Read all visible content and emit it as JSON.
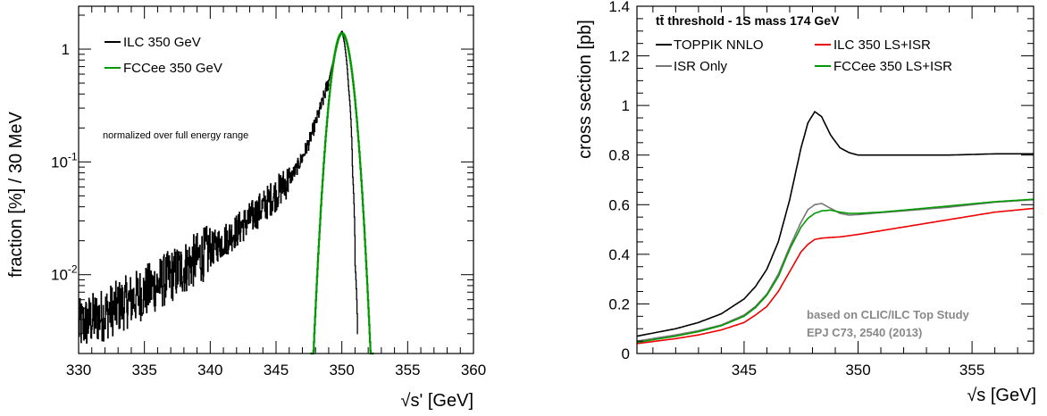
{
  "chart_data": [
    {
      "type": "line",
      "xlabel": "√s' [GeV]",
      "ylabel": "fraction [%] / 30 MeV",
      "xlim": [
        330,
        360
      ],
      "ylim": [
        0.002,
        2.4
      ],
      "yscale": "log",
      "grid": false,
      "legend_position": "top-left",
      "xticks": [
        "330",
        "335",
        "340",
        "345",
        "350",
        "355",
        "360"
      ],
      "yticks": [
        {
          "value": 1,
          "label": "1"
        },
        {
          "value": 0.1,
          "label": "10",
          "exp": "-1"
        },
        {
          "value": 0.01,
          "label": "10",
          "exp": "-2"
        }
      ],
      "annotation": "normalized over full energy range",
      "series": [
        {
          "name": "ILC 350 GeV",
          "color": "#000000",
          "style": "histogram-noisy",
          "x": [
            330,
            331,
            332,
            333,
            334,
            335,
            336,
            337,
            338,
            339,
            340,
            341,
            342,
            343,
            344,
            345,
            346,
            346.5,
            347,
            347.5,
            348,
            348.5,
            349,
            349.3,
            349.6,
            349.8,
            350,
            350.2,
            350.5,
            350.8,
            351,
            351.2
          ],
          "y": [
            0.0035,
            0.004,
            0.0045,
            0.0052,
            0.006,
            0.007,
            0.0082,
            0.0097,
            0.0115,
            0.0138,
            0.0165,
            0.02,
            0.0245,
            0.031,
            0.04,
            0.052,
            0.07,
            0.085,
            0.11,
            0.15,
            0.22,
            0.33,
            0.52,
            0.75,
            1.05,
            1.3,
            1.45,
            1.1,
            0.45,
            0.08,
            0.012,
            0.002
          ]
        },
        {
          "name": "FCCee 350 GeV",
          "color": "#009900",
          "style": "gaussian",
          "mean": 350.0,
          "sigma": 0.6,
          "peak": 1.38,
          "range": [
            347.6,
            352.4
          ]
        }
      ]
    },
    {
      "type": "line",
      "title": "tt̄ threshold - 1S mass 174 GeV",
      "xlabel": "√s [GeV]",
      "ylabel": "cross section [pb]",
      "xlim": [
        340.3,
        357.7
      ],
      "ylim": [
        0,
        1.4
      ],
      "grid": false,
      "legend_position": "top",
      "xticks": [
        "345",
        "350",
        "355"
      ],
      "yticks": [
        "0",
        "0.2",
        "0.4",
        "0.6",
        "0.8",
        "1",
        "1.2",
        "1.4"
      ],
      "annotations": [
        "based on CLIC/ILC Top Study",
        "EPJ C73, 2540 (2013)"
      ],
      "series": [
        {
          "name": "TOPPIK NNLO",
          "color": "#000000",
          "x": [
            340.3,
            342,
            343,
            344,
            345,
            345.5,
            346,
            346.5,
            347,
            347.5,
            347.8,
            348.1,
            348.4,
            348.8,
            349.2,
            349.6,
            350,
            350.5,
            351,
            352,
            354,
            356,
            357.7
          ],
          "y": [
            0.07,
            0.1,
            0.125,
            0.16,
            0.22,
            0.27,
            0.34,
            0.45,
            0.62,
            0.83,
            0.93,
            0.975,
            0.955,
            0.88,
            0.83,
            0.81,
            0.8,
            0.8,
            0.8,
            0.8,
            0.8,
            0.805,
            0.805
          ]
        },
        {
          "name": "ISR Only",
          "color": "#777777",
          "x": [
            340.3,
            342,
            343,
            344,
            345,
            345.5,
            346,
            346.5,
            347,
            347.5,
            347.8,
            348.1,
            348.4,
            348.8,
            349.2,
            349.6,
            350,
            351,
            352,
            354,
            356,
            357.7
          ],
          "y": [
            0.05,
            0.075,
            0.092,
            0.115,
            0.155,
            0.19,
            0.24,
            0.32,
            0.43,
            0.53,
            0.58,
            0.6,
            0.605,
            0.585,
            0.565,
            0.558,
            0.56,
            0.568,
            0.575,
            0.59,
            0.61,
            0.62
          ]
        },
        {
          "name": "ILC 350 LS+ISR",
          "color": "#ee0000",
          "x": [
            340.3,
            342,
            343,
            344,
            345,
            345.5,
            346,
            346.5,
            347,
            347.5,
            347.8,
            348.1,
            348.4,
            348.8,
            349.2,
            349.6,
            350,
            351,
            352,
            354,
            356,
            357.7
          ],
          "y": [
            0.04,
            0.06,
            0.075,
            0.095,
            0.125,
            0.155,
            0.19,
            0.25,
            0.33,
            0.41,
            0.44,
            0.46,
            0.465,
            0.468,
            0.47,
            0.475,
            0.48,
            0.495,
            0.51,
            0.54,
            0.57,
            0.585
          ]
        },
        {
          "name": "FCCee 350 LS+ISR",
          "color": "#009900",
          "x": [
            340.3,
            342,
            343,
            344,
            345,
            345.5,
            346,
            346.5,
            347,
            347.5,
            347.8,
            348.1,
            348.4,
            348.8,
            349.2,
            349.6,
            350,
            351,
            352,
            354,
            356,
            357.7
          ],
          "y": [
            0.045,
            0.07,
            0.088,
            0.112,
            0.15,
            0.185,
            0.235,
            0.31,
            0.42,
            0.51,
            0.545,
            0.565,
            0.575,
            0.578,
            0.57,
            0.565,
            0.565,
            0.57,
            0.578,
            0.595,
            0.612,
            0.622
          ]
        }
      ]
    }
  ]
}
